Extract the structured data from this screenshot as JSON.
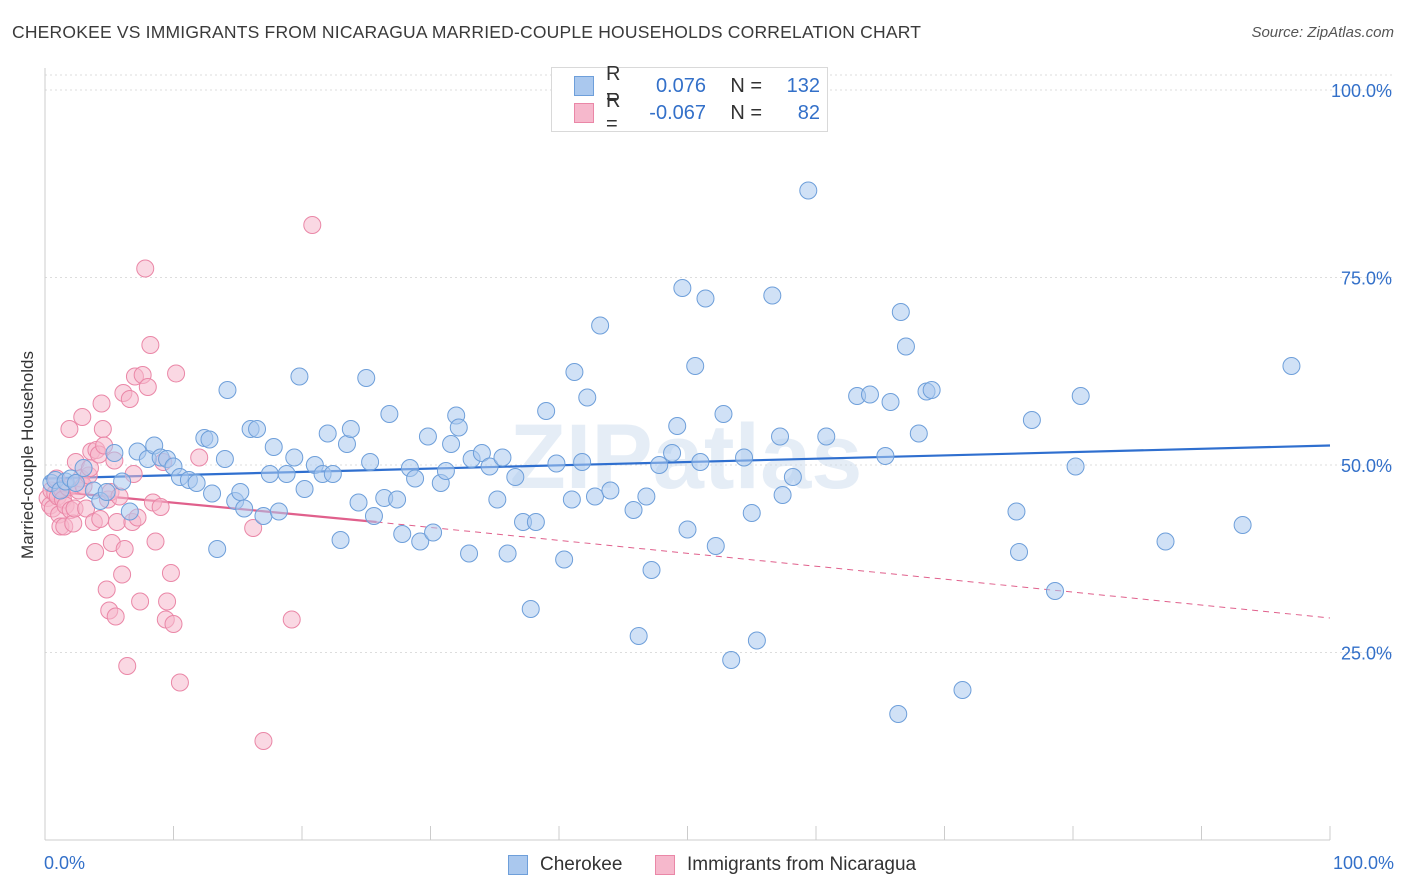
{
  "title": "CHEROKEE VS IMMIGRANTS FROM NICARAGUA MARRIED-COUPLE HOUSEHOLDS CORRELATION CHART",
  "source": "Source: ZipAtlas.com",
  "watermark": "ZIPatlas",
  "colors": {
    "blue_fill": "#aac8ee",
    "blue_stroke": "#6e9fda",
    "blue_line": "#2f6fcf",
    "pink_fill": "#f6b8cc",
    "pink_stroke": "#ea87a7",
    "pink_line": "#e0608c",
    "axis_text": "#3370c9",
    "grid": "#dddddd"
  },
  "legend_top": {
    "series1": {
      "r_label": "R =",
      "r_value": "0.076",
      "n_label": "N =",
      "n_value": "132"
    },
    "series2": {
      "r_label": "R =",
      "r_value": "-0.067",
      "n_label": "N =",
      "n_value": "82"
    }
  },
  "legend_bottom": {
    "series1": "Cherokee",
    "series2": "Immigrants from Nicaragua"
  },
  "x_axis": {
    "min_label": "0.0%",
    "max_label": "100.0%"
  },
  "chart_data": {
    "type": "scatter",
    "title": "CHEROKEE VS IMMIGRANTS FROM NICARAGUA MARRIED-COUPLE HOUSEHOLDS CORRELATION CHART",
    "xlabel": "",
    "ylabel": "Married-couple Households",
    "xlim": [
      0,
      100
    ],
    "ylim": [
      0,
      102
    ],
    "y_ticks": [
      25,
      50,
      75,
      100
    ],
    "y_tick_labels": [
      "25.0%",
      "50.0%",
      "75.0%",
      "100.0%"
    ],
    "x_tick_labels": [
      "0.0%",
      "100.0%"
    ],
    "grid": "horizontal dashed",
    "legend": "top-center and bottom",
    "series": [
      {
        "name": "Cherokee",
        "color": "#aac8ee",
        "stats": {
          "R": 0.076,
          "N": 132
        },
        "trend": {
          "x": [
            0,
            100
          ],
          "y": [
            48.2,
            52.6
          ],
          "style": "solid"
        },
        "points": [
          [
            0.5,
            47.6
          ],
          [
            0.8,
            48.0
          ],
          [
            1.2,
            46.6
          ],
          [
            1.6,
            47.8
          ],
          [
            2.0,
            48.2
          ],
          [
            2.4,
            47.6
          ],
          [
            3.0,
            49.6
          ],
          [
            3.8,
            46.6
          ],
          [
            4.3,
            45.2
          ],
          [
            4.8,
            46.4
          ],
          [
            5.4,
            51.6
          ],
          [
            6.0,
            47.8
          ],
          [
            6.6,
            43.8
          ],
          [
            7.2,
            51.8
          ],
          [
            8.0,
            50.8
          ],
          [
            8.5,
            52.6
          ],
          [
            9.0,
            51.0
          ],
          [
            9.5,
            50.8
          ],
          [
            10.0,
            49.8
          ],
          [
            10.5,
            48.4
          ],
          [
            11.2,
            48.0
          ],
          [
            11.8,
            47.6
          ],
          [
            12.4,
            53.6
          ],
          [
            12.8,
            53.4
          ],
          [
            13.0,
            46.2
          ],
          [
            13.4,
            38.8
          ],
          [
            14.0,
            50.8
          ],
          [
            14.2,
            60.0
          ],
          [
            14.8,
            45.2
          ],
          [
            15.2,
            46.4
          ],
          [
            15.5,
            44.2
          ],
          [
            16.0,
            54.8
          ],
          [
            16.5,
            54.8
          ],
          [
            17.0,
            43.2
          ],
          [
            17.5,
            48.8
          ],
          [
            17.8,
            52.4
          ],
          [
            18.2,
            43.8
          ],
          [
            18.8,
            48.8
          ],
          [
            19.4,
            51.0
          ],
          [
            19.8,
            61.8
          ],
          [
            20.2,
            46.8
          ],
          [
            21.0,
            50.0
          ],
          [
            21.6,
            48.8
          ],
          [
            22.0,
            54.2
          ],
          [
            22.4,
            48.8
          ],
          [
            23.0,
            40.0
          ],
          [
            23.5,
            52.8
          ],
          [
            23.8,
            54.8
          ],
          [
            24.4,
            45.0
          ],
          [
            25.0,
            61.6
          ],
          [
            25.3,
            50.4
          ],
          [
            25.6,
            43.2
          ],
          [
            26.4,
            45.6
          ],
          [
            26.8,
            56.8
          ],
          [
            27.4,
            45.4
          ],
          [
            27.8,
            40.8
          ],
          [
            28.4,
            49.6
          ],
          [
            28.8,
            48.2
          ],
          [
            29.2,
            39.8
          ],
          [
            29.8,
            53.8
          ],
          [
            30.2,
            41.0
          ],
          [
            30.8,
            47.6
          ],
          [
            31.2,
            49.2
          ],
          [
            31.6,
            52.8
          ],
          [
            32.0,
            56.6
          ],
          [
            32.2,
            55.0
          ],
          [
            33.0,
            38.2
          ],
          [
            33.2,
            50.8
          ],
          [
            34.0,
            51.6
          ],
          [
            34.6,
            49.8
          ],
          [
            35.2,
            45.4
          ],
          [
            35.6,
            51.0
          ],
          [
            36.0,
            38.2
          ],
          [
            36.6,
            48.4
          ],
          [
            37.2,
            42.4
          ],
          [
            37.8,
            30.8
          ],
          [
            38.2,
            42.4
          ],
          [
            39.0,
            57.2
          ],
          [
            39.8,
            50.2
          ],
          [
            40.4,
            37.4
          ],
          [
            41.0,
            45.4
          ],
          [
            41.2,
            62.4
          ],
          [
            41.8,
            50.4
          ],
          [
            42.2,
            59.0
          ],
          [
            42.8,
            45.8
          ],
          [
            43.2,
            68.6
          ],
          [
            44.0,
            46.6
          ],
          [
            45.8,
            44.0
          ],
          [
            46.2,
            27.2
          ],
          [
            46.8,
            45.8
          ],
          [
            47.2,
            36.0
          ],
          [
            47.8,
            50.0
          ],
          [
            48.8,
            51.6
          ],
          [
            49.2,
            55.2
          ],
          [
            49.6,
            73.6
          ],
          [
            50.0,
            41.4
          ],
          [
            50.6,
            63.2
          ],
          [
            51.0,
            50.4
          ],
          [
            51.4,
            72.2
          ],
          [
            52.2,
            39.2
          ],
          [
            52.8,
            56.8
          ],
          [
            53.4,
            24.0
          ],
          [
            54.4,
            51.0
          ],
          [
            55.0,
            43.6
          ],
          [
            55.4,
            26.6
          ],
          [
            56.6,
            72.6
          ],
          [
            57.2,
            53.8
          ],
          [
            57.4,
            46.0
          ],
          [
            58.2,
            48.4
          ],
          [
            59.4,
            86.6
          ],
          [
            60.8,
            53.8
          ],
          [
            63.2,
            59.2
          ],
          [
            64.2,
            59.4
          ],
          [
            65.4,
            51.2
          ],
          [
            65.8,
            58.4
          ],
          [
            66.4,
            16.8
          ],
          [
            66.6,
            70.4
          ],
          [
            67.0,
            65.8
          ],
          [
            68.0,
            54.2
          ],
          [
            68.6,
            59.8
          ],
          [
            69.0,
            60.0
          ],
          [
            71.4,
            20.0
          ],
          [
            75.6,
            43.8
          ],
          [
            75.8,
            38.4
          ],
          [
            76.8,
            56.0
          ],
          [
            78.6,
            33.2
          ],
          [
            80.2,
            49.8
          ],
          [
            80.6,
            59.2
          ],
          [
            87.2,
            39.8
          ],
          [
            93.2,
            42.0
          ],
          [
            97.0,
            63.2
          ]
        ]
      },
      {
        "name": "Immigrants from Nicaragua",
        "color": "#f6b8cc",
        "stats": {
          "R": -0.067,
          "N": 82
        },
        "trend": {
          "x": [
            0,
            25.8
          ],
          "y": [
            46.6,
            42.4
          ],
          "style": "solid",
          "extended_x": [
            25.8,
            100
          ],
          "extended_y": [
            42.4,
            29.6
          ],
          "extended_style": "dashed"
        },
        "points": [
          [
            0.2,
            45.6
          ],
          [
            0.4,
            44.6
          ],
          [
            0.5,
            46.6
          ],
          [
            0.6,
            44.2
          ],
          [
            0.8,
            46.2
          ],
          [
            0.9,
            48.2
          ],
          [
            1.0,
            45.8
          ],
          [
            1.1,
            43.4
          ],
          [
            1.2,
            41.8
          ],
          [
            1.3,
            46.8
          ],
          [
            1.4,
            45.4
          ],
          [
            1.5,
            41.8
          ],
          [
            1.6,
            44.6
          ],
          [
            1.8,
            47.0
          ],
          [
            1.9,
            54.8
          ],
          [
            2.0,
            44.0
          ],
          [
            2.2,
            42.2
          ],
          [
            2.3,
            44.2
          ],
          [
            2.4,
            50.4
          ],
          [
            2.6,
            46.6
          ],
          [
            2.8,
            48.2
          ],
          [
            2.9,
            56.4
          ],
          [
            3.0,
            47.2
          ],
          [
            3.2,
            44.2
          ],
          [
            3.4,
            48.6
          ],
          [
            3.5,
            49.6
          ],
          [
            3.6,
            51.8
          ],
          [
            3.8,
            42.4
          ],
          [
            3.9,
            38.4
          ],
          [
            4.0,
            52.0
          ],
          [
            4.2,
            51.4
          ],
          [
            4.3,
            42.8
          ],
          [
            4.4,
            58.2
          ],
          [
            4.5,
            54.8
          ],
          [
            4.6,
            52.6
          ],
          [
            4.8,
            33.4
          ],
          [
            4.9,
            45.4
          ],
          [
            5.0,
            30.6
          ],
          [
            5.1,
            46.4
          ],
          [
            5.2,
            39.6
          ],
          [
            5.4,
            50.6
          ],
          [
            5.5,
            29.8
          ],
          [
            5.6,
            42.4
          ],
          [
            5.8,
            45.8
          ],
          [
            6.0,
            35.4
          ],
          [
            6.1,
            59.6
          ],
          [
            6.2,
            38.8
          ],
          [
            6.4,
            23.2
          ],
          [
            6.6,
            58.8
          ],
          [
            6.8,
            42.4
          ],
          [
            6.9,
            48.8
          ],
          [
            7.0,
            61.8
          ],
          [
            7.2,
            43.0
          ],
          [
            7.4,
            31.8
          ],
          [
            7.6,
            62.0
          ],
          [
            7.8,
            76.2
          ],
          [
            8.0,
            60.4
          ],
          [
            8.2,
            66.0
          ],
          [
            8.4,
            45.0
          ],
          [
            8.6,
            39.8
          ],
          [
            9.0,
            44.4
          ],
          [
            9.2,
            50.4
          ],
          [
            9.4,
            29.4
          ],
          [
            9.5,
            31.8
          ],
          [
            9.8,
            35.6
          ],
          [
            10.0,
            28.8
          ],
          [
            10.2,
            62.2
          ],
          [
            10.5,
            21.0
          ],
          [
            12.0,
            51.0
          ],
          [
            16.2,
            41.6
          ],
          [
            17.0,
            13.2
          ],
          [
            19.2,
            29.4
          ],
          [
            20.8,
            82.0
          ]
        ]
      }
    ]
  }
}
